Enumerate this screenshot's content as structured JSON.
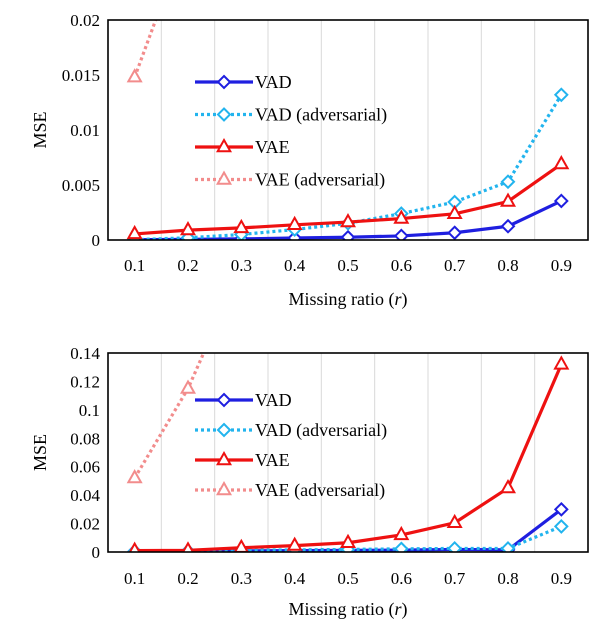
{
  "chart_data": [
    {
      "type": "line",
      "title": "",
      "xlabel": "Missing ratio (r)",
      "xlabel_prefix": "Missing ratio (",
      "xlabel_var": "r",
      "xlabel_suffix": ")",
      "ylabel": "MSE",
      "x": [
        0.1,
        0.2,
        0.3,
        0.4,
        0.5,
        0.6,
        0.7,
        0.8,
        0.9
      ],
      "x_tick_labels": [
        "0.1",
        "0.2",
        "0.3",
        "0.4",
        "0.5",
        "0.6",
        "0.7",
        "0.8",
        "0.9"
      ],
      "ylim": [
        0,
        0.02
      ],
      "y_ticks": [
        0,
        0.005,
        0.01,
        0.015,
        0.02
      ],
      "y_tick_labels": [
        "0",
        "0.005",
        "0.01",
        "0.015",
        "0.02"
      ],
      "grid": "vertical",
      "legend": "inside center-left",
      "series": [
        {
          "name": "VAD",
          "color": "#1f1fe0",
          "dashed": false,
          "marker": "diamond",
          "values": [
            3e-05,
            6e-05,
            0.0001,
            0.00018,
            0.00025,
            0.00037,
            0.00066,
            0.00125,
            0.00355
          ]
        },
        {
          "name": "VAD (adversarial)",
          "color": "#22b4ee",
          "dashed": true,
          "marker": "diamond",
          "values": [
            3e-05,
            0.0002,
            0.0005,
            0.00095,
            0.00152,
            0.0024,
            0.00345,
            0.0053,
            0.0132
          ]
        },
        {
          "name": "VAE",
          "color": "#ee1111",
          "dashed": false,
          "marker": "triangle",
          "values": [
            0.00055,
            0.0009,
            0.0011,
            0.00138,
            0.00163,
            0.00195,
            0.00238,
            0.0035,
            0.0069
          ]
        },
        {
          "name": "VAE (adversarial)",
          "color": "#f28c8c",
          "dashed": true,
          "marker": "triangle",
          "values": [
            0.0148,
            0.028,
            null,
            null,
            null,
            null,
            null,
            null,
            null
          ]
        }
      ]
    },
    {
      "type": "line",
      "title": "",
      "xlabel": "Missing ratio (r)",
      "xlabel_prefix": "Missing ratio (",
      "xlabel_var": "r",
      "xlabel_suffix": ")",
      "ylabel": "MSE",
      "x": [
        0.1,
        0.2,
        0.3,
        0.4,
        0.5,
        0.6,
        0.7,
        0.8,
        0.9
      ],
      "x_tick_labels": [
        "0.1",
        "0.2",
        "0.3",
        "0.4",
        "0.5",
        "0.6",
        "0.7",
        "0.8",
        "0.9"
      ],
      "ylim": [
        0,
        0.14
      ],
      "y_ticks": [
        0,
        0.02,
        0.04,
        0.06,
        0.08,
        0.1,
        0.12,
        0.14
      ],
      "y_tick_labels": [
        "0",
        "0.02",
        "0.04",
        "0.06",
        "0.08",
        "0.1",
        "0.12",
        "0.14"
      ],
      "grid": "vertical",
      "legend": "inside center-left",
      "series": [
        {
          "name": "VAD",
          "color": "#1f1fe0",
          "dashed": false,
          "marker": "diamond",
          "values": [
            0.0005,
            0.0005,
            0.0008,
            0.001,
            0.0012,
            0.0013,
            0.0018,
            0.0015,
            0.03
          ]
        },
        {
          "name": "VAD (adversarial)",
          "color": "#22b4ee",
          "dashed": true,
          "marker": "diamond",
          "values": [
            0.0005,
            0.0008,
            0.0012,
            0.0015,
            0.0018,
            0.0022,
            0.0025,
            0.0025,
            0.018
          ]
        },
        {
          "name": "VAE",
          "color": "#ee1111",
          "dashed": false,
          "marker": "triangle",
          "values": [
            0.001,
            0.0012,
            0.003,
            0.0045,
            0.0065,
            0.012,
            0.0205,
            0.045,
            0.132
          ]
        },
        {
          "name": "VAE (adversarial)",
          "color": "#f28c8c",
          "dashed": true,
          "marker": "triangle",
          "values": [
            0.052,
            0.115,
            0.2,
            null,
            null,
            null,
            null,
            null,
            null
          ]
        }
      ]
    }
  ]
}
